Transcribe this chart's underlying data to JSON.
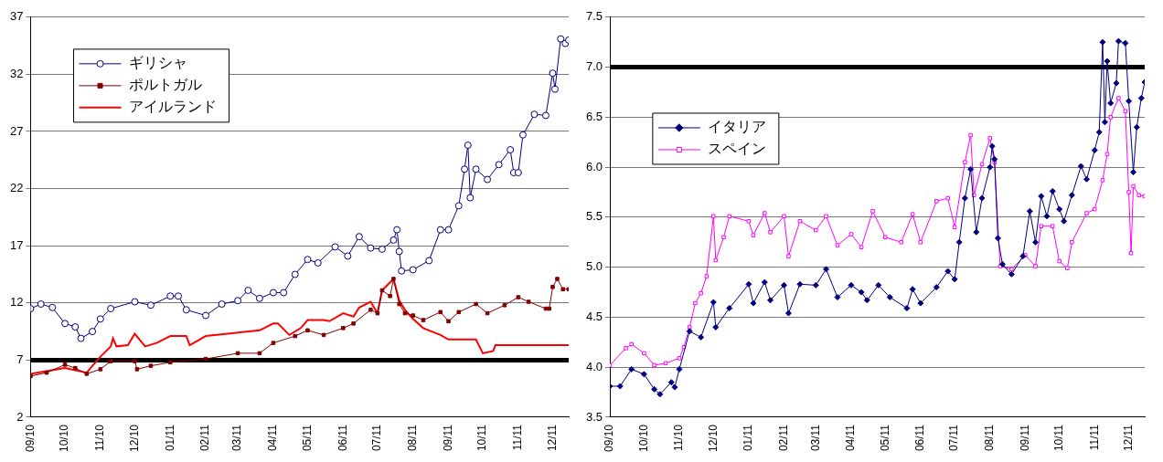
{
  "chart_data": [
    {
      "type": "line",
      "xlim": [
        "2010-09-01",
        "2011-12-15"
      ],
      "xticks": [
        {
          "value": "2010-09-01",
          "label": "09/10"
        },
        {
          "value": "2010-10-01",
          "label": "10/10"
        },
        {
          "value": "2010-11-01",
          "label": "11/10"
        },
        {
          "value": "2010-12-01",
          "label": "12/10"
        },
        {
          "value": "2011-01-01",
          "label": "01/11"
        },
        {
          "value": "2011-02-01",
          "label": "02/11"
        },
        {
          "value": "2011-03-01",
          "label": "03/11"
        },
        {
          "value": "2011-04-01",
          "label": "04/11"
        },
        {
          "value": "2011-05-01",
          "label": "05/11"
        },
        {
          "value": "2011-06-01",
          "label": "06/11"
        },
        {
          "value": "2011-07-01",
          "label": "07/11"
        },
        {
          "value": "2011-08-01",
          "label": "08/11"
        },
        {
          "value": "2011-09-01",
          "label": "09/11"
        },
        {
          "value": "2011-10-01",
          "label": "10/11"
        },
        {
          "value": "2011-11-01",
          "label": "11/11"
        },
        {
          "value": "2011-12-01",
          "label": "12/11"
        }
      ],
      "ylim": [
        2,
        37
      ],
      "yticks": [
        2,
        7,
        12,
        17,
        22,
        27,
        32,
        37
      ],
      "grid": "y",
      "legend": "top left",
      "ref_lines": [
        {
          "axis": "y",
          "value": 7,
          "color": "#000000"
        }
      ],
      "series": [
        {
          "name": "ギリシャ",
          "color": "#000080",
          "marker": "circle",
          "x": [
            "2010-09-01",
            "2010-09-10",
            "2010-09-20",
            "2010-10-01",
            "2010-10-10",
            "2010-10-15",
            "2010-10-25",
            "2010-11-01",
            "2010-11-10",
            "2010-12-01",
            "2010-12-15",
            "2011-01-01",
            "2011-01-08",
            "2011-01-15",
            "2011-02-01",
            "2011-02-15",
            "2011-03-01",
            "2011-03-10",
            "2011-03-20",
            "2011-04-01",
            "2011-04-10",
            "2011-04-20",
            "2011-05-01",
            "2011-05-10",
            "2011-05-25",
            "2011-06-05",
            "2011-06-15",
            "2011-06-25",
            "2011-07-05",
            "2011-07-15",
            "2011-07-18",
            "2011-07-20",
            "2011-07-22",
            "2011-08-01",
            "2011-08-15",
            "2011-08-25",
            "2011-09-01",
            "2011-09-10",
            "2011-09-15",
            "2011-09-18",
            "2011-09-20",
            "2011-09-25",
            "2011-10-05",
            "2011-10-15",
            "2011-10-25",
            "2011-10-28",
            "2011-11-01",
            "2011-11-05",
            "2011-11-15",
            "2011-11-25",
            "2011-12-01",
            "2011-12-03",
            "2011-12-08",
            "2011-12-12",
            "2011-12-15"
          ],
          "values": [
            11.5,
            11.9,
            11.6,
            10.2,
            9.9,
            8.9,
            9.5,
            10.6,
            11.5,
            12.1,
            11.8,
            12.6,
            12.6,
            11.4,
            10.9,
            11.9,
            12.2,
            13.1,
            12.4,
            12.9,
            12.9,
            14.5,
            15.8,
            15.5,
            16.9,
            16.1,
            17.8,
            16.8,
            16.7,
            17.5,
            18.4,
            16.5,
            14.8,
            14.9,
            15.7,
            18.4,
            18.4,
            20.5,
            23.7,
            25.8,
            21.2,
            23.7,
            22.8,
            24.1,
            25.4,
            23.4,
            23.4,
            26.7,
            28.5,
            28.4,
            32.1,
            30.7,
            35.1,
            34.7,
            35.0
          ]
        },
        {
          "name": "ポルトガル",
          "color": "#800000",
          "marker": "square",
          "x": [
            "2010-09-01",
            "2010-09-15",
            "2010-10-01",
            "2010-10-10",
            "2010-10-20",
            "2010-11-01",
            "2010-11-10",
            "2010-12-01",
            "2010-12-03",
            "2010-12-15",
            "2011-01-01",
            "2011-02-01",
            "2011-03-01",
            "2011-03-20",
            "2011-04-01",
            "2011-04-20",
            "2011-05-01",
            "2011-05-15",
            "2011-06-01",
            "2011-06-10",
            "2011-06-25",
            "2011-07-01",
            "2011-07-05",
            "2011-07-12",
            "2011-07-15",
            "2011-07-20",
            "2011-07-25",
            "2011-08-01",
            "2011-08-10",
            "2011-08-25",
            "2011-09-01",
            "2011-09-10",
            "2011-09-25",
            "2011-10-05",
            "2011-10-20",
            "2011-11-01",
            "2011-11-10",
            "2011-11-25",
            "2011-11-28",
            "2011-12-01",
            "2011-12-05",
            "2011-12-10",
            "2011-12-15"
          ],
          "values": [
            5.6,
            5.9,
            6.6,
            6.3,
            5.8,
            6.2,
            6.9,
            6.9,
            6.2,
            6.5,
            6.8,
            7.1,
            7.6,
            7.6,
            8.5,
            9.1,
            9.6,
            9.2,
            9.8,
            10.2,
            11.4,
            11.1,
            13.1,
            12.6,
            14.1,
            11.9,
            11.1,
            10.9,
            10.5,
            11.2,
            10.4,
            11.2,
            11.9,
            11.1,
            11.8,
            12.5,
            12.1,
            11.5,
            11.5,
            13.4,
            14.1,
            13.2,
            13.2
          ]
        },
        {
          "name": "アイルランド",
          "color": "#ff0000",
          "marker": "none",
          "x": [
            "2010-09-01",
            "2010-10-01",
            "2010-10-20",
            "2010-10-25",
            "2010-11-01",
            "2010-11-10",
            "2010-11-12",
            "2010-11-15",
            "2010-11-25",
            "2010-12-01",
            "2010-12-10",
            "2010-12-20",
            "2011-01-01",
            "2011-01-15",
            "2011-01-18",
            "2011-02-01",
            "2011-03-01",
            "2011-03-20",
            "2011-04-01",
            "2011-04-05",
            "2011-04-15",
            "2011-04-25",
            "2011-05-01",
            "2011-05-15",
            "2011-05-20",
            "2011-06-01",
            "2011-06-10",
            "2011-06-15",
            "2011-06-25",
            "2011-07-01",
            "2011-07-05",
            "2011-07-15",
            "2011-07-20",
            "2011-07-25",
            "2011-08-01",
            "2011-08-10",
            "2011-08-25",
            "2011-09-01",
            "2011-09-15",
            "2011-09-25",
            "2011-10-01",
            "2011-10-10",
            "2011-10-12",
            "2011-12-15"
          ],
          "values": [
            5.8,
            6.3,
            5.9,
            6.5,
            7.3,
            8.2,
            8.9,
            8.2,
            8.3,
            9.3,
            8.2,
            8.5,
            9.1,
            9.1,
            8.3,
            9.1,
            9.4,
            9.6,
            10.2,
            10.2,
            9.2,
            9.8,
            10.5,
            10.5,
            10.4,
            11.1,
            10.8,
            11.6,
            12.1,
            11.1,
            13.1,
            14.1,
            12.2,
            11.4,
            10.6,
            9.8,
            9.2,
            8.8,
            8.8,
            8.8,
            7.6,
            7.8,
            8.3,
            8.3
          ]
        }
      ]
    },
    {
      "type": "line",
      "xlim": [
        "2010-09-01",
        "2011-12-15"
      ],
      "xticks": [
        {
          "value": "2010-09-01",
          "label": "09/10"
        },
        {
          "value": "2010-10-01",
          "label": "10/10"
        },
        {
          "value": "2010-11-01",
          "label": "11/10"
        },
        {
          "value": "2010-12-01",
          "label": "12/10"
        },
        {
          "value": "2011-01-01",
          "label": "01/11"
        },
        {
          "value": "2011-02-01",
          "label": "02/11"
        },
        {
          "value": "2011-03-01",
          "label": "03/11"
        },
        {
          "value": "2011-04-01",
          "label": "04/11"
        },
        {
          "value": "2011-05-01",
          "label": "05/11"
        },
        {
          "value": "2011-06-01",
          "label": "06/11"
        },
        {
          "value": "2011-07-01",
          "label": "07/11"
        },
        {
          "value": "2011-08-01",
          "label": "08/11"
        },
        {
          "value": "2011-09-01",
          "label": "09/11"
        },
        {
          "value": "2011-10-01",
          "label": "10/11"
        },
        {
          "value": "2011-11-01",
          "label": "11/11"
        },
        {
          "value": "2011-12-01",
          "label": "12/11"
        }
      ],
      "ylim": [
        3.5,
        7.5
      ],
      "yticks": [
        {
          "value": 3.5,
          "label": "3.5"
        },
        {
          "value": 4,
          "label": "4.0"
        },
        {
          "value": 4.5,
          "label": "4.5"
        },
        {
          "value": 5,
          "label": "5.0"
        },
        {
          "value": 5.5,
          "label": "5.5"
        },
        {
          "value": 6,
          "label": "6.0"
        },
        {
          "value": 6.5,
          "label": "6.5"
        },
        {
          "value": 7,
          "label": "7.0"
        },
        {
          "value": 7.5,
          "label": "7.5"
        }
      ],
      "grid": "y",
      "legend": "left",
      "ref_lines": [
        {
          "axis": "y",
          "value": 7,
          "color": "#000000"
        }
      ],
      "series": [
        {
          "name": "イタリア",
          "color": "#000080",
          "marker": "diamond",
          "x": [
            "2010-09-01",
            "2010-09-10",
            "2010-09-20",
            "2010-10-01",
            "2010-10-10",
            "2010-10-15",
            "2010-10-25",
            "2010-10-28",
            "2010-11-01",
            "2010-11-10",
            "2010-11-20",
            "2010-12-01",
            "2010-12-03",
            "2010-12-15",
            "2011-01-01",
            "2011-01-05",
            "2011-01-15",
            "2011-01-20",
            "2011-02-01",
            "2011-02-05",
            "2011-02-15",
            "2011-03-01",
            "2011-03-10",
            "2011-03-20",
            "2011-04-01",
            "2011-04-10",
            "2011-04-15",
            "2011-04-25",
            "2011-05-05",
            "2011-05-20",
            "2011-05-25",
            "2011-06-01",
            "2011-06-15",
            "2011-06-25",
            "2011-07-01",
            "2011-07-05",
            "2011-07-10",
            "2011-07-15",
            "2011-07-20",
            "2011-07-25",
            "2011-08-01",
            "2011-08-03",
            "2011-08-05",
            "2011-08-08",
            "2011-08-12",
            "2011-08-20",
            "2011-08-30",
            "2011-09-05",
            "2011-09-10",
            "2011-09-15",
            "2011-09-20",
            "2011-09-25",
            "2011-10-01",
            "2011-10-05",
            "2011-10-12",
            "2011-10-20",
            "2011-10-25",
            "2011-11-01",
            "2011-11-05",
            "2011-11-08",
            "2011-11-10",
            "2011-11-12",
            "2011-11-15",
            "2011-11-20",
            "2011-11-22",
            "2011-11-28",
            "2011-12-01",
            "2011-12-05",
            "2011-12-08",
            "2011-12-12",
            "2011-12-15"
          ],
          "values": [
            3.81,
            3.81,
            3.98,
            3.93,
            3.78,
            3.73,
            3.85,
            3.8,
            3.98,
            4.36,
            4.3,
            4.65,
            4.4,
            4.59,
            4.83,
            4.64,
            4.85,
            4.67,
            4.82,
            4.54,
            4.83,
            4.82,
            4.98,
            4.7,
            4.82,
            4.75,
            4.67,
            4.82,
            4.7,
            4.59,
            4.78,
            4.64,
            4.8,
            4.96,
            4.88,
            5.25,
            5.69,
            5.98,
            5.35,
            5.69,
            6.0,
            6.21,
            6.08,
            5.29,
            5.03,
            4.93,
            5.11,
            5.56,
            5.25,
            5.71,
            5.51,
            5.76,
            5.58,
            5.46,
            5.72,
            6.01,
            5.88,
            6.17,
            6.35,
            7.25,
            6.45,
            7.06,
            6.64,
            6.84,
            7.26,
            7.24,
            6.66,
            5.95,
            6.4,
            6.69,
            6.85
          ]
        },
        {
          "name": "スペイン",
          "color": "#ff00ff",
          "marker": "square",
          "x": [
            "2010-09-01",
            "2010-09-15",
            "2010-09-20",
            "2010-10-01",
            "2010-10-10",
            "2010-10-20",
            "2010-11-01",
            "2010-11-05",
            "2010-11-10",
            "2010-11-15",
            "2010-11-20",
            "2010-11-25",
            "2010-12-01",
            "2010-12-03",
            "2010-12-10",
            "2010-12-15",
            "2011-01-01",
            "2011-01-05",
            "2011-01-15",
            "2011-01-20",
            "2011-02-01",
            "2011-02-05",
            "2011-02-15",
            "2011-03-01",
            "2011-03-10",
            "2011-03-20",
            "2011-04-01",
            "2011-04-10",
            "2011-04-20",
            "2011-05-01",
            "2011-05-15",
            "2011-05-25",
            "2011-06-01",
            "2011-06-15",
            "2011-06-25",
            "2011-07-01",
            "2011-07-10",
            "2011-07-15",
            "2011-07-18",
            "2011-07-25",
            "2011-08-01",
            "2011-08-05",
            "2011-08-10",
            "2011-08-20",
            "2011-09-01",
            "2011-09-10",
            "2011-09-15",
            "2011-09-25",
            "2011-10-01",
            "2011-10-08",
            "2011-10-12",
            "2011-10-25",
            "2011-11-01",
            "2011-11-08",
            "2011-11-12",
            "2011-11-15",
            "2011-11-22",
            "2011-11-28",
            "2011-12-01",
            "2011-12-03",
            "2011-12-05",
            "2011-12-10",
            "2011-12-15"
          ],
          "values": [
            4.02,
            4.19,
            4.23,
            4.14,
            4.02,
            4.04,
            4.09,
            4.2,
            4.4,
            4.64,
            4.74,
            4.91,
            5.51,
            5.07,
            5.3,
            5.51,
            5.46,
            5.32,
            5.54,
            5.35,
            5.51,
            5.11,
            5.46,
            5.37,
            5.51,
            5.22,
            5.33,
            5.2,
            5.56,
            5.3,
            5.25,
            5.53,
            5.25,
            5.66,
            5.69,
            5.4,
            6.05,
            6.32,
            5.72,
            6.03,
            6.29,
            6.05,
            5.01,
            4.98,
            5.12,
            5.01,
            5.41,
            5.41,
            5.06,
            4.99,
            5.25,
            5.54,
            5.58,
            5.87,
            6.13,
            6.5,
            6.69,
            6.56,
            5.75,
            5.14,
            5.81,
            5.72,
            5.71
          ]
        }
      ]
    }
  ]
}
